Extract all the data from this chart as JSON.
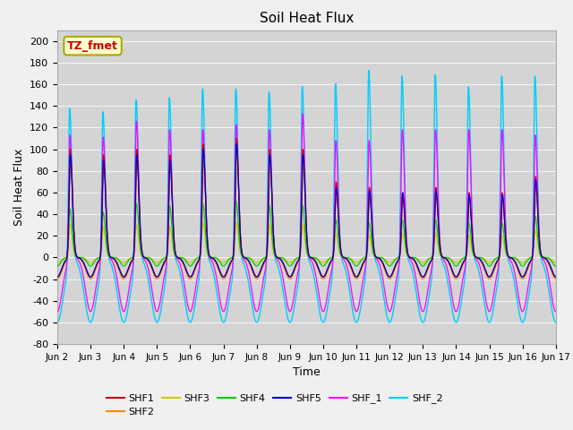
{
  "title": "Soil Heat Flux",
  "xlabel": "Time",
  "ylabel": "Soil Heat Flux",
  "ylim": [
    -80,
    210
  ],
  "yticks": [
    -80,
    -60,
    -40,
    -20,
    0,
    20,
    40,
    60,
    80,
    100,
    120,
    140,
    160,
    180,
    200
  ],
  "xtick_labels": [
    "Jun 2",
    "Jun 3",
    "Jun 4",
    "Jun 5",
    "Jun 6",
    "Jun 7",
    "Jun 8",
    "Jun 9",
    "Jun 10",
    "Jun 11",
    "Jun 12",
    "Jun 13",
    "Jun 14",
    "Jun 15",
    "Jun 16",
    "Jun 17"
  ],
  "series_colors": {
    "SHF1": "#cc0000",
    "SHF2": "#ff8800",
    "SHF3": "#cccc00",
    "SHF4": "#00cc00",
    "SHF5": "#0000cc",
    "SHF_1": "#ff00ff",
    "SHF_2": "#00ccff"
  },
  "annotation_text": "TZ_fmet",
  "annotation_color": "#cc0000",
  "annotation_bg": "#ffffcc",
  "fig_bg": "#f0f0f0",
  "plot_bg": "#d4d4d4",
  "n_days": 15,
  "points_per_day": 144,
  "title_fontsize": 11
}
